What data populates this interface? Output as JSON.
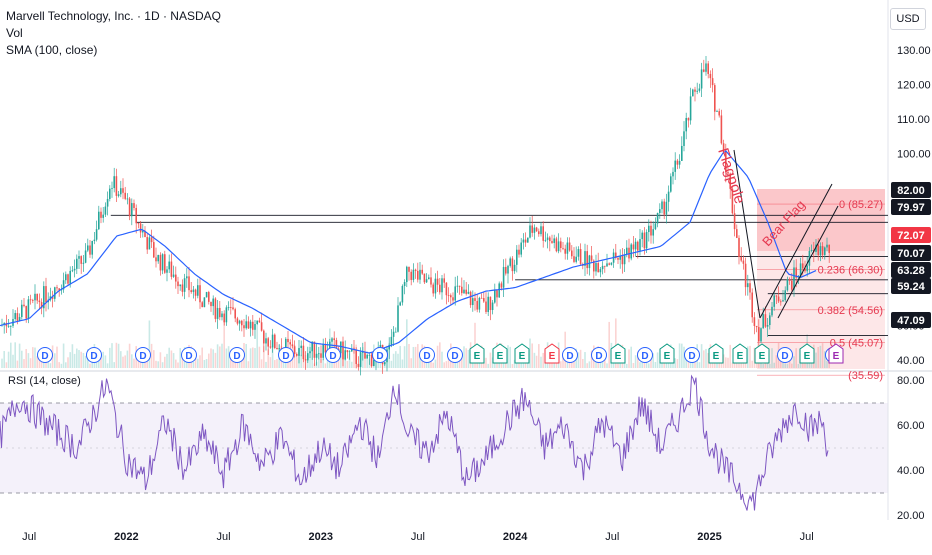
{
  "header": {
    "title": "Marvell Technology, Inc. · 1D · NASDAQ",
    "vol_label": "Vol",
    "sma_label": "SMA (100, close)",
    "currency_button": "USD"
  },
  "rsi": {
    "label": "RSI (14, close)",
    "y_ticks": [
      "80.00",
      "60.00",
      "40.00",
      "20.00"
    ]
  },
  "price_axis": {
    "ticks": [
      "130.00",
      "120.00",
      "110.00",
      "100.00",
      "90.00",
      "50.00",
      "40.00"
    ]
  },
  "price_badges": [
    {
      "value": "82.00",
      "color": "#131722"
    },
    {
      "value": "79.97",
      "color": "#131722"
    },
    {
      "value": "72.07",
      "color": "#f23645"
    },
    {
      "value": "70.07",
      "color": "#131722"
    },
    {
      "value": "63.28",
      "color": "#131722"
    },
    {
      "value": "59.24",
      "color": "#131722"
    },
    {
      "value": "47.09",
      "color": "#131722"
    }
  ],
  "fib_labels": [
    "0 (85.27)",
    "0.236 (66.30)",
    "0.382 (54.56)",
    "0.5 (45.07)",
    "(35.59)"
  ],
  "annotations": {
    "flagpole": "Flagpole",
    "bear_flag": "Bear Flag"
  },
  "event_markers": [
    "D",
    "D",
    "D",
    "D",
    "D",
    "D",
    "D",
    "D",
    "D",
    "D",
    "E",
    "E",
    "E",
    "E",
    "D",
    "D",
    "E",
    "D",
    "E",
    "D",
    "E",
    "E",
    "E",
    "D",
    "E",
    "D",
    "E"
  ],
  "chart_data": {
    "type": "line",
    "title": "Marvell Technology, Inc. · 1D · NASDAQ",
    "x_tick_labels": [
      "Jul",
      "2022",
      "Jul",
      "2023",
      "Jul",
      "2024",
      "Jul",
      "2025",
      "Jul"
    ],
    "series": [
      {
        "name": "SMA (100, close)",
        "color": "#2962ff",
        "values": [
          [
            2021.35,
            50
          ],
          [
            2021.5,
            52
          ],
          [
            2021.65,
            60
          ],
          [
            2021.8,
            65
          ],
          [
            2021.95,
            76
          ],
          [
            2022.08,
            78
          ],
          [
            2022.2,
            73
          ],
          [
            2022.35,
            65
          ],
          [
            2022.5,
            59
          ],
          [
            2022.65,
            55
          ],
          [
            2022.8,
            50
          ],
          [
            2022.95,
            45
          ],
          [
            2023.1,
            44
          ],
          [
            2023.25,
            42
          ],
          [
            2023.4,
            45
          ],
          [
            2023.55,
            52
          ],
          [
            2023.7,
            57
          ],
          [
            2023.85,
            60
          ],
          [
            2024.0,
            61
          ],
          [
            2024.15,
            64
          ],
          [
            2024.3,
            67
          ],
          [
            2024.45,
            69
          ],
          [
            2024.6,
            71
          ],
          [
            2024.75,
            73
          ],
          [
            2024.9,
            80
          ],
          [
            2025.0,
            94
          ],
          [
            2025.08,
            101
          ],
          [
            2025.2,
            93
          ],
          [
            2025.3,
            80
          ],
          [
            2025.4,
            65
          ],
          [
            2025.47,
            64
          ],
          [
            2025.55,
            66
          ]
        ]
      },
      {
        "name": "Price",
        "color": "#26a69a",
        "values": [
          [
            2021.35,
            50
          ],
          [
            2021.5,
            55
          ],
          [
            2021.65,
            62
          ],
          [
            2021.8,
            70
          ],
          [
            2021.92,
            92
          ],
          [
            2022.0,
            86
          ],
          [
            2022.15,
            70
          ],
          [
            2022.3,
            62
          ],
          [
            2022.45,
            55
          ],
          [
            2022.6,
            52
          ],
          [
            2022.75,
            45
          ],
          [
            2022.9,
            42
          ],
          [
            2023.05,
            44
          ],
          [
            2023.2,
            40
          ],
          [
            2023.35,
            42
          ],
          [
            2023.45,
            66
          ],
          [
            2023.55,
            62
          ],
          [
            2023.7,
            60
          ],
          [
            2023.85,
            55
          ],
          [
            2024.0,
            70
          ],
          [
            2024.1,
            79
          ],
          [
            2024.25,
            72
          ],
          [
            2024.4,
            68
          ],
          [
            2024.55,
            70
          ],
          [
            2024.65,
            74
          ],
          [
            2024.75,
            82
          ],
          [
            2024.85,
            100
          ],
          [
            2024.92,
            118
          ],
          [
            2024.98,
            125
          ],
          [
            2025.05,
            110
          ],
          [
            2025.15,
            72
          ],
          [
            2025.25,
            48
          ],
          [
            2025.35,
            58
          ],
          [
            2025.45,
            65
          ],
          [
            2025.55,
            72
          ]
        ]
      }
    ],
    "horizontal_levels": [
      82.0,
      79.97,
      70.07,
      63.28,
      59.24,
      47.09
    ],
    "fibonacci": [
      {
        "ratio": "0",
        "price": 85.27
      },
      {
        "ratio": "0.236",
        "price": 66.3
      },
      {
        "ratio": "0.382",
        "price": 54.56
      },
      {
        "ratio": "0.5",
        "price": 45.07
      },
      {
        "ratio": "",
        "price": 35.59
      }
    ],
    "rsi": {
      "name": "RSI (14, close)",
      "color": "#7e57c2",
      "overbought": 70,
      "oversold": 30,
      "ylim": [
        20,
        80
      ],
      "values": [
        [
          2021.35,
          55
        ],
        [
          2021.45,
          72
        ],
        [
          2021.6,
          60
        ],
        [
          2021.75,
          50
        ],
        [
          2021.9,
          78
        ],
        [
          2022.0,
          45
        ],
        [
          2022.1,
          35
        ],
        [
          2022.2,
          62
        ],
        [
          2022.3,
          40
        ],
        [
          2022.4,
          55
        ],
        [
          2022.5,
          38
        ],
        [
          2022.6,
          60
        ],
        [
          2022.7,
          42
        ],
        [
          2022.8,
          55
        ],
        [
          2022.9,
          35
        ],
        [
          2023.0,
          50
        ],
        [
          2023.1,
          40
        ],
        [
          2023.2,
          62
        ],
        [
          2023.3,
          44
        ],
        [
          2023.38,
          80
        ],
        [
          2023.45,
          55
        ],
        [
          2023.55,
          48
        ],
        [
          2023.65,
          65
        ],
        [
          2023.75,
          35
        ],
        [
          2023.85,
          45
        ],
        [
          2023.95,
          60
        ],
        [
          2024.05,
          72
        ],
        [
          2024.15,
          50
        ],
        [
          2024.25,
          60
        ],
        [
          2024.35,
          40
        ],
        [
          2024.45,
          62
        ],
        [
          2024.55,
          45
        ],
        [
          2024.65,
          70
        ],
        [
          2024.75,
          50
        ],
        [
          2024.85,
          65
        ],
        [
          2024.92,
          80
        ],
        [
          2025.0,
          52
        ],
        [
          2025.08,
          40
        ],
        [
          2025.15,
          33
        ],
        [
          2025.22,
          25
        ],
        [
          2025.3,
          45
        ],
        [
          2025.38,
          60
        ],
        [
          2025.45,
          68
        ],
        [
          2025.52,
          58
        ],
        [
          2025.58,
          62
        ],
        [
          2025.62,
          45
        ]
      ]
    }
  },
  "colors": {
    "sma": "#2962ff",
    "rsi": "#7e57c2",
    "up": "#26a69a",
    "down": "#ef5350",
    "fib_zone": "#f23645",
    "annotation": "#e53950"
  }
}
